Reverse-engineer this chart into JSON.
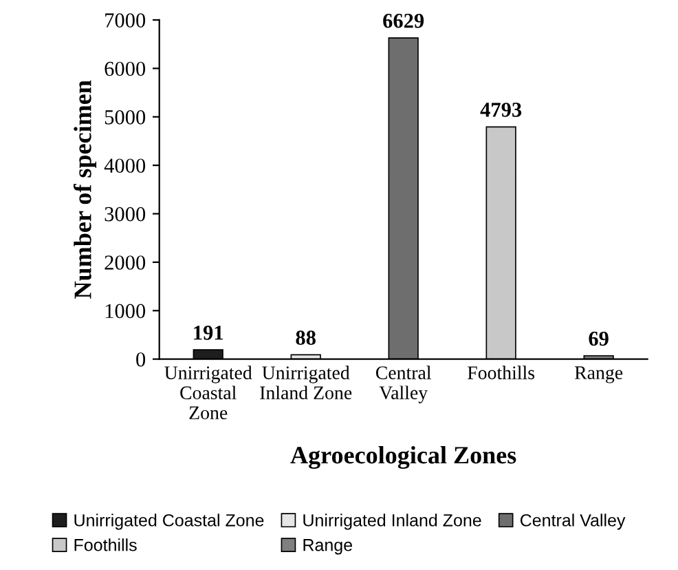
{
  "chart_data": {
    "type": "bar",
    "xlabel": "Agroecological Zones",
    "ylabel": "Number of specimen",
    "categories": [
      "Unirrigated Coastal Zone",
      "Unirrigated Inland Zone",
      "Central Valley",
      "Foothills",
      "Range"
    ],
    "series": [
      {
        "name": "Unirrigated Coastal Zone",
        "color": "#1e1e1e",
        "values": [
          191,
          null,
          null,
          null,
          null
        ]
      },
      {
        "name": "Unirrigated Inland Zone",
        "color": "#e6e6e6",
        "values": [
          null,
          88,
          null,
          null,
          null
        ]
      },
      {
        "name": "Central Valley",
        "color": "#6e6e6e",
        "values": [
          null,
          null,
          6629,
          null,
          null
        ]
      },
      {
        "name": "Foothills",
        "color": "#c8c8c8",
        "values": [
          null,
          null,
          null,
          4793,
          null
        ]
      },
      {
        "name": "Range",
        "color": "#808080",
        "values": [
          null,
          null,
          null,
          null,
          69
        ]
      }
    ],
    "ylim": [
      0,
      7000
    ],
    "yticks": [
      0,
      1000,
      2000,
      3000,
      4000,
      5000,
      6000,
      7000
    ],
    "grid": false,
    "data_labels": true,
    "legend": "bottom"
  }
}
